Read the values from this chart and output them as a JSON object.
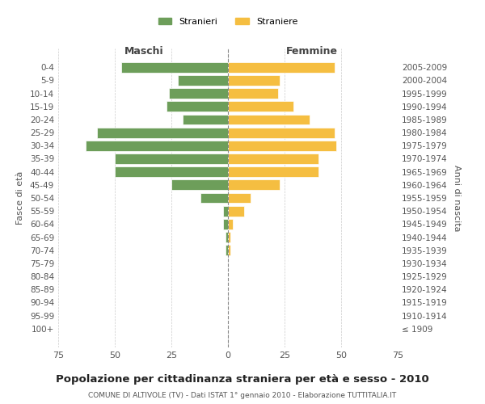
{
  "age_groups": [
    "100+",
    "95-99",
    "90-94",
    "85-89",
    "80-84",
    "75-79",
    "70-74",
    "65-69",
    "60-64",
    "55-59",
    "50-54",
    "45-49",
    "40-44",
    "35-39",
    "30-34",
    "25-29",
    "20-24",
    "15-19",
    "10-14",
    "5-9",
    "0-4"
  ],
  "birth_years": [
    "≤ 1909",
    "1910-1914",
    "1915-1919",
    "1920-1924",
    "1925-1929",
    "1930-1934",
    "1935-1939",
    "1940-1944",
    "1945-1949",
    "1950-1954",
    "1955-1959",
    "1960-1964",
    "1965-1969",
    "1970-1974",
    "1975-1979",
    "1980-1984",
    "1985-1989",
    "1990-1994",
    "1995-1999",
    "2000-2004",
    "2005-2009"
  ],
  "males": [
    0,
    0,
    0,
    0,
    0,
    0,
    1,
    1,
    2,
    2,
    12,
    25,
    50,
    50,
    63,
    58,
    20,
    27,
    26,
    22,
    47
  ],
  "females": [
    0,
    0,
    0,
    0,
    0,
    0,
    1,
    1,
    2,
    7,
    10,
    23,
    40,
    40,
    48,
    47,
    36,
    29,
    22,
    23,
    47
  ],
  "male_color": "#6d9e5a",
  "female_color": "#f5be41",
  "background_color": "#ffffff",
  "grid_color": "#cccccc",
  "title": "Popolazione per cittadinanza straniera per età e sesso - 2010",
  "subtitle": "COMUNE DI ALTIVOLE (TV) - Dati ISTAT 1° gennaio 2010 - Elaborazione TUTTITALIA.IT",
  "ylabel_left": "Fasce di età",
  "ylabel_right": "Anni di nascita",
  "xlabel_left": "Maschi",
  "xlabel_right": "Femmine",
  "legend_male": "Stranieri",
  "legend_female": "Straniere",
  "xlim": 75,
  "bar_height": 0.8
}
